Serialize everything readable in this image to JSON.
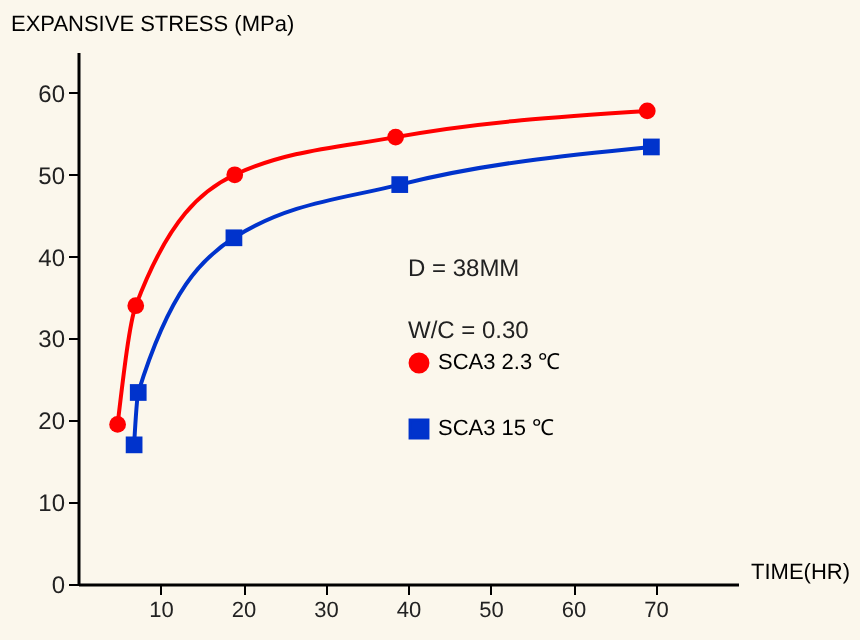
{
  "chart_data": {
    "type": "line",
    "ylabel": "EXPANSIVE STRESS (MPa)",
    "xlabel": "TIME(HR)",
    "xlim": [
      0,
      80
    ],
    "ylim": [
      0,
      65
    ],
    "xticks": [
      10,
      20,
      30,
      40,
      50,
      60,
      70
    ],
    "yticks": [
      0,
      10,
      20,
      30,
      40,
      50,
      60
    ],
    "series": [
      {
        "name": "SCA3   2.3 ℃",
        "color": "#ff0000",
        "marker": "circle",
        "x": [
          4.8,
          7,
          19,
          38.5,
          69
        ],
        "values": [
          19.5,
          34,
          50,
          54.6,
          57.8
        ]
      },
      {
        "name": "SCA3   15 ℃",
        "color": "#0033cc",
        "marker": "square",
        "x": [
          6.8,
          7.3,
          18.9,
          39,
          69.5
        ],
        "values": [
          17,
          23.4,
          42.3,
          48.8,
          53.4
        ]
      }
    ],
    "annotations": [
      "D = 38MM",
      "W/C = 0.30"
    ],
    "grid": false,
    "legend": "right",
    "line_style": "solid"
  }
}
